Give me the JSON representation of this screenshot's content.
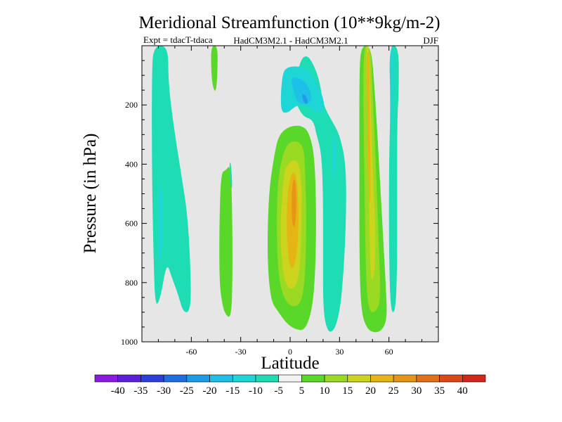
{
  "chart_data": {
    "type": "heatmap",
    "title": "Meridional Streamfunction (10**9kg/m-2)",
    "subtitle_left": "Expt = tdacT-tdaca",
    "subtitle_center": "HadCM3M2.1 - HadCM3M2.1",
    "subtitle_right": "DJF",
    "xlabel": "Latitude",
    "ylabel": "Pressure (in hPa)",
    "xlim": [
      -90,
      90
    ],
    "ylim": [
      1000,
      0
    ],
    "x_ticks": [
      -60,
      -30,
      0,
      30,
      60
    ],
    "x_tick_labels": [
      "-60",
      "-30",
      "0",
      "30",
      "60"
    ],
    "y_ticks": [
      200,
      400,
      600,
      800,
      1000
    ],
    "y_tick_labels": [
      "200",
      "400",
      "600",
      "800",
      "1000"
    ],
    "background_color": "#e6e6e6",
    "colorbar": {
      "labels": [
        "-40",
        "-35",
        "-30",
        "-25",
        "-20",
        "-15",
        "-10",
        "-5",
        "5",
        "10",
        "15",
        "20",
        "25",
        "30",
        "35",
        "40"
      ],
      "colors": [
        "#8a1ae0",
        "#5a1fd6",
        "#2d3fd8",
        "#1f6ee0",
        "#1e9be6",
        "#1ec0e8",
        "#1ed6d6",
        "#1edcb4",
        "#f2f2f2",
        "#5ad82a",
        "#9ada22",
        "#ccd41e",
        "#e6b414",
        "#e69614",
        "#e0701a",
        "#dc4818",
        "#d2261a"
      ]
    },
    "regions": [
      {
        "name": "band-80s-outer",
        "color": "#1edcb4",
        "level": "-10 to -5",
        "polygon": [
          [
            -83,
            0
          ],
          [
            -74,
            0
          ],
          [
            -74,
            120
          ],
          [
            -71,
            260
          ],
          [
            -66,
            440
          ],
          [
            -62,
            580
          ],
          [
            -60,
            820
          ],
          [
            -61,
            900
          ],
          [
            -65,
            900
          ],
          [
            -68,
            840
          ],
          [
            -72,
            780
          ],
          [
            -75,
            730
          ],
          [
            -79,
            860
          ],
          [
            -82,
            880
          ],
          [
            -83,
            700
          ],
          [
            -84,
            400
          ],
          [
            -84,
            100
          ]
        ]
      },
      {
        "name": "band-80s-inner",
        "color": "#1ed6d6",
        "level": "-15 to -10",
        "polygon": [
          [
            -80,
            480
          ],
          [
            -78,
            460
          ],
          [
            -77,
            600
          ],
          [
            -78,
            720
          ],
          [
            -80,
            740
          ]
        ]
      },
      {
        "name": "band-55s-thin",
        "color": "#5ad82a",
        "level": "5 to 10",
        "polygon": [
          [
            -48,
            0
          ],
          [
            -44,
            0
          ],
          [
            -44,
            80
          ],
          [
            -45,
            160
          ],
          [
            -47,
            140
          ],
          [
            -48,
            80
          ]
        ]
      },
      {
        "name": "band-35s",
        "color": "#5ad82a",
        "level": "5 to 10",
        "polygon": [
          [
            -42,
            430
          ],
          [
            -39,
            420
          ],
          [
            -36,
            400
          ],
          [
            -35,
            600
          ],
          [
            -35,
            820
          ],
          [
            -36,
            920
          ],
          [
            -39,
            910
          ],
          [
            -41,
            880
          ],
          [
            -43,
            800
          ],
          [
            -43,
            600
          ]
        ]
      },
      {
        "name": "band-35s-tealedge",
        "color": "#1edcb4",
        "level": "-10 to -5",
        "polygon": [
          [
            -37,
            400
          ],
          [
            -36,
            390
          ],
          [
            -35,
            480
          ],
          [
            -36,
            480
          ]
        ]
      },
      {
        "name": "band-10n-north-tealbody",
        "color": "#1edcb4",
        "level": "-10 to -5",
        "polygon": [
          [
            6,
            50
          ],
          [
            10,
            30
          ],
          [
            14,
            60
          ],
          [
            18,
            120
          ],
          [
            20,
            200
          ],
          [
            26,
            260
          ],
          [
            30,
            300
          ],
          [
            34,
            400
          ],
          [
            34,
            600
          ],
          [
            32,
            800
          ],
          [
            30,
            900
          ],
          [
            27,
            960
          ],
          [
            23,
            970
          ],
          [
            20,
            900
          ],
          [
            20,
            700
          ],
          [
            20,
            500
          ],
          [
            19,
            360
          ],
          [
            16,
            300
          ],
          [
            14,
            250
          ],
          [
            8,
            240
          ],
          [
            4,
            200
          ],
          [
            2,
            160
          ]
        ]
      },
      {
        "name": "upper-cyan",
        "color": "#1ed6d6",
        "level": "-15 to -10",
        "polygon": [
          [
            -5,
            100
          ],
          [
            -2,
            70
          ],
          [
            8,
            70
          ],
          [
            14,
            100
          ],
          [
            20,
            170
          ],
          [
            21,
            220
          ],
          [
            16,
            230
          ],
          [
            10,
            200
          ],
          [
            4,
            200
          ],
          [
            -2,
            230
          ],
          [
            -6,
            220
          ]
        ]
      },
      {
        "name": "upper-blue",
        "color": "#1ec0e8",
        "level": "-20 to -15",
        "polygon": [
          [
            0,
            100
          ],
          [
            10,
            120
          ],
          [
            14,
            180
          ],
          [
            10,
            200
          ],
          [
            4,
            190
          ],
          [
            2,
            150
          ]
        ]
      },
      {
        "name": "upper-darkblue",
        "color": "#1e9be6",
        "level": "-25 to -20",
        "polygon": [
          [
            7,
            160
          ],
          [
            10,
            170
          ],
          [
            11,
            200
          ],
          [
            8,
            190
          ]
        ]
      },
      {
        "name": "band-eq-green",
        "color": "#5ad82a",
        "level": "5 to 10",
        "polygon": [
          [
            -10,
            380
          ],
          [
            -7,
            300
          ],
          [
            0,
            270
          ],
          [
            8,
            270
          ],
          [
            12,
            300
          ],
          [
            15,
            380
          ],
          [
            16,
            600
          ],
          [
            15,
            800
          ],
          [
            13,
            900
          ],
          [
            9,
            960
          ],
          [
            4,
            960
          ],
          [
            -2,
            940
          ],
          [
            -7,
            900
          ],
          [
            -12,
            860
          ],
          [
            -14,
            700
          ],
          [
            -13,
            500
          ]
        ]
      },
      {
        "name": "band-eq-ltgreen",
        "color": "#9ada22",
        "level": "10 to 15",
        "polygon": [
          [
            -6,
            400
          ],
          [
            -2,
            330
          ],
          [
            4,
            320
          ],
          [
            8,
            340
          ],
          [
            9,
            400
          ],
          [
            10,
            600
          ],
          [
            9,
            800
          ],
          [
            6,
            880
          ],
          [
            -1,
            880
          ],
          [
            -6,
            820
          ],
          [
            -8,
            700
          ],
          [
            -8,
            500
          ]
        ]
      },
      {
        "name": "band-eq-yellow",
        "color": "#ccd41e",
        "level": "15 to 20",
        "polygon": [
          [
            -4,
            440
          ],
          [
            -2,
            400
          ],
          [
            4,
            380
          ],
          [
            7,
            440
          ],
          [
            7,
            600
          ],
          [
            6,
            760
          ],
          [
            3,
            820
          ],
          [
            -2,
            820
          ],
          [
            -5,
            750
          ],
          [
            -6,
            600
          ]
        ]
      },
      {
        "name": "band-eq-gold",
        "color": "#e6b414",
        "level": "20 to 25",
        "polygon": [
          [
            0,
            440
          ],
          [
            3,
            420
          ],
          [
            5,
            500
          ],
          [
            5,
            650
          ],
          [
            3,
            740
          ],
          [
            0,
            760
          ],
          [
            -2,
            660
          ],
          [
            -2,
            520
          ]
        ]
      },
      {
        "name": "band-eq-orange",
        "color": "#e69614",
        "level": "25 to 30",
        "polygon": [
          [
            1,
            470
          ],
          [
            3,
            440
          ],
          [
            4,
            520
          ],
          [
            3,
            620
          ],
          [
            1,
            600
          ]
        ]
      },
      {
        "name": "band-50n-outer",
        "color": "#5ad82a",
        "level": "5 to 10",
        "polygon": [
          [
            43,
            0
          ],
          [
            49,
            0
          ],
          [
            51,
            120
          ],
          [
            53,
            300
          ],
          [
            56,
            600
          ],
          [
            58,
            800
          ],
          [
            59,
            920
          ],
          [
            56,
            960
          ],
          [
            52,
            970
          ],
          [
            47,
            960
          ],
          [
            43,
            900
          ],
          [
            42,
            700
          ],
          [
            42,
            400
          ],
          [
            42,
            100
          ]
        ]
      },
      {
        "name": "band-50n-ltgreen",
        "color": "#9ada22",
        "level": "10 to 15",
        "polygon": [
          [
            44,
            0
          ],
          [
            49,
            0
          ],
          [
            50,
            150
          ],
          [
            52,
            400
          ],
          [
            54,
            700
          ],
          [
            55,
            860
          ],
          [
            52,
            900
          ],
          [
            48,
            900
          ],
          [
            46,
            800
          ],
          [
            45,
            400
          ]
        ]
      },
      {
        "name": "band-50n-yellow",
        "color": "#ccd41e",
        "level": "15 to 20",
        "polygon": [
          [
            46,
            0
          ],
          [
            48,
            0
          ],
          [
            49,
            200
          ],
          [
            50,
            400
          ],
          [
            52,
            650
          ],
          [
            51,
            780
          ],
          [
            49,
            800
          ],
          [
            48,
            600
          ],
          [
            47,
            200
          ]
        ]
      },
      {
        "name": "band-50n-gold",
        "color": "#e6b414",
        "level": "20 to 25",
        "polygon": [
          [
            46.5,
            20
          ],
          [
            48,
            20
          ],
          [
            48.5,
            300
          ],
          [
            49,
            500
          ],
          [
            48,
            560
          ],
          [
            47,
            300
          ]
        ]
      },
      {
        "name": "band-65n-teal",
        "color": "#1edcb4",
        "level": "-10 to -5",
        "polygon": [
          [
            60,
            0
          ],
          [
            66,
            0
          ],
          [
            66,
            150
          ],
          [
            65,
            250
          ],
          [
            65,
            500
          ],
          [
            65,
            750
          ],
          [
            64,
            900
          ],
          [
            61,
            900
          ],
          [
            60,
            700
          ],
          [
            60,
            400
          ],
          [
            61,
            200
          ]
        ]
      },
      {
        "name": "band-65n-cyan",
        "color": "#1ed6d6",
        "level": "-15 to -10",
        "polygon": [
          [
            61,
            0
          ],
          [
            63,
            0
          ],
          [
            63,
            150
          ],
          [
            62,
            300
          ],
          [
            61,
            200
          ]
        ]
      },
      {
        "name": "band-30n-patch",
        "color": "#1ed6d6",
        "level": "-15 to -10",
        "polygon": [
          [
            26,
            300
          ],
          [
            28,
            310
          ],
          [
            28,
            440
          ],
          [
            26,
            460
          ]
        ]
      }
    ]
  }
}
